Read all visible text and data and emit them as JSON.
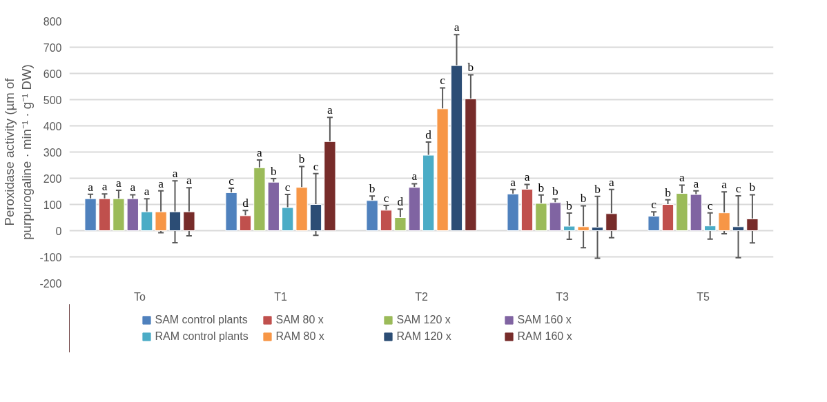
{
  "chart_data": {
    "type": "bar",
    "ylabel": "Peroxidase activity (µm of purpurogaline · min⁻¹ · g⁻¹ DW)",
    "categories": [
      "To",
      "T1",
      "T2",
      "T3",
      "T5"
    ],
    "ylim": [
      -200,
      800
    ],
    "yticks": [
      -200,
      -100,
      0,
      100,
      200,
      300,
      400,
      500,
      600,
      700,
      800
    ],
    "grid": "y",
    "legend": "bottom",
    "series": [
      {
        "name": "SAM control plants",
        "color": "#4f81bd",
        "values": [
          122,
          145,
          115,
          140,
          55
        ],
        "errors": [
          17,
          17,
          17,
          17,
          17
        ],
        "value_labels": [
          "a",
          "c",
          "b",
          "a",
          "c"
        ]
      },
      {
        "name": "SAM 80 x",
        "color": "#c0504d",
        "values": [
          122,
          57,
          78,
          158,
          100
        ],
        "errors": [
          18,
          20,
          18,
          18,
          18
        ],
        "value_labels": [
          "a",
          "d",
          "c",
          "a",
          "b"
        ]
      },
      {
        "name": "SAM 120 x",
        "color": "#9bbb59",
        "values": [
          122,
          240,
          50,
          104,
          142
        ],
        "errors": [
          32,
          30,
          32,
          32,
          32
        ],
        "value_labels": [
          "a",
          "a",
          "d",
          "b",
          "a"
        ]
      },
      {
        "name": "SAM 160 x",
        "color": "#8064a2",
        "values": [
          122,
          185,
          165,
          107,
          138
        ],
        "errors": [
          15,
          14,
          14,
          14,
          14
        ],
        "value_labels": [
          "a",
          "b",
          "a",
          "b",
          "a"
        ]
      },
      {
        "name": "RAM control plants",
        "color": "#4bacc6",
        "values": [
          72,
          88,
          288,
          17,
          18
        ],
        "errors": [
          50,
          50,
          50,
          50,
          50
        ],
        "value_labels": [
          "a",
          "c",
          "d",
          "b",
          "c"
        ]
      },
      {
        "name": "RAM 80 x",
        "color": "#f79646",
        "values": [
          72,
          165,
          465,
          15,
          68
        ],
        "errors": [
          80,
          80,
          80,
          80,
          80
        ],
        "value_labels": [
          "a",
          "b",
          "c",
          "b",
          "a"
        ]
      },
      {
        "name": "RAM 120 x",
        "color": "#2c4d75",
        "values": [
          72,
          100,
          630,
          13,
          15
        ],
        "errors": [
          118,
          118,
          118,
          118,
          118
        ],
        "value_labels": [
          "a",
          "c",
          "a",
          "b",
          "c"
        ]
      },
      {
        "name": "RAM 160 x",
        "color": "#772c2a",
        "values": [
          72,
          340,
          503,
          65,
          45
        ],
        "errors": [
          92,
          92,
          92,
          92,
          92
        ],
        "value_labels": [
          "a",
          "a",
          "b",
          "a",
          "b"
        ]
      }
    ]
  }
}
